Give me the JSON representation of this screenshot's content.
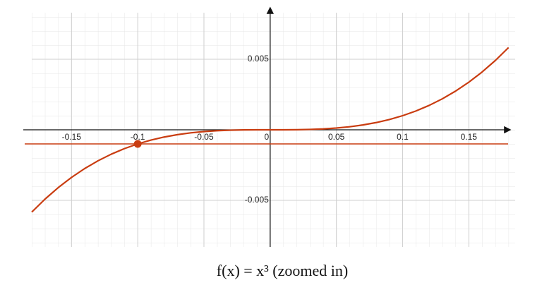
{
  "chart_data": {
    "type": "line",
    "title": "f(x) = x³ (zoomed in)",
    "x": [
      -0.18,
      -0.17,
      -0.16,
      -0.15,
      -0.14,
      -0.13,
      -0.12,
      -0.11,
      -0.1,
      -0.09,
      -0.08,
      -0.07,
      -0.06,
      -0.05,
      -0.04,
      -0.03,
      -0.02,
      -0.01,
      0,
      0.01,
      0.02,
      0.03,
      0.04,
      0.05,
      0.06,
      0.07,
      0.08,
      0.09,
      0.1,
      0.11,
      0.12,
      0.13,
      0.14,
      0.15,
      0.16,
      0.17,
      0.18
    ],
    "series": [
      {
        "color": "#c93c10",
        "values": [
          -0.005832,
          -0.004913,
          -0.004096,
          -0.003375,
          -0.002744,
          -0.002197,
          -0.001728,
          -0.001331,
          -0.001,
          -0.000729,
          -0.000512,
          -0.000343,
          -0.000216,
          -0.000125,
          -6.4e-05,
          -2.7e-05,
          -8e-06,
          -1e-06,
          0,
          1e-06,
          8e-06,
          2.7e-05,
          6.4e-05,
          0.000125,
          0.000216,
          0.000343,
          0.000512,
          0.000729,
          0.001,
          0.001331,
          0.001728,
          0.002197,
          0.002744,
          0.003375,
          0.004096,
          0.004913,
          0.005832
        ]
      }
    ],
    "point": {
      "x": -0.1,
      "y": -0.001
    },
    "hline": -0.001,
    "xlim": [
      -0.18,
      0.185
    ],
    "ylim": [
      -0.0083,
      0.0083
    ],
    "xticks": [
      -0.15,
      -0.1,
      -0.05,
      0,
      0.05,
      0.1,
      0.15
    ],
    "yticks": [
      -0.005,
      0.005
    ],
    "grid": true
  }
}
